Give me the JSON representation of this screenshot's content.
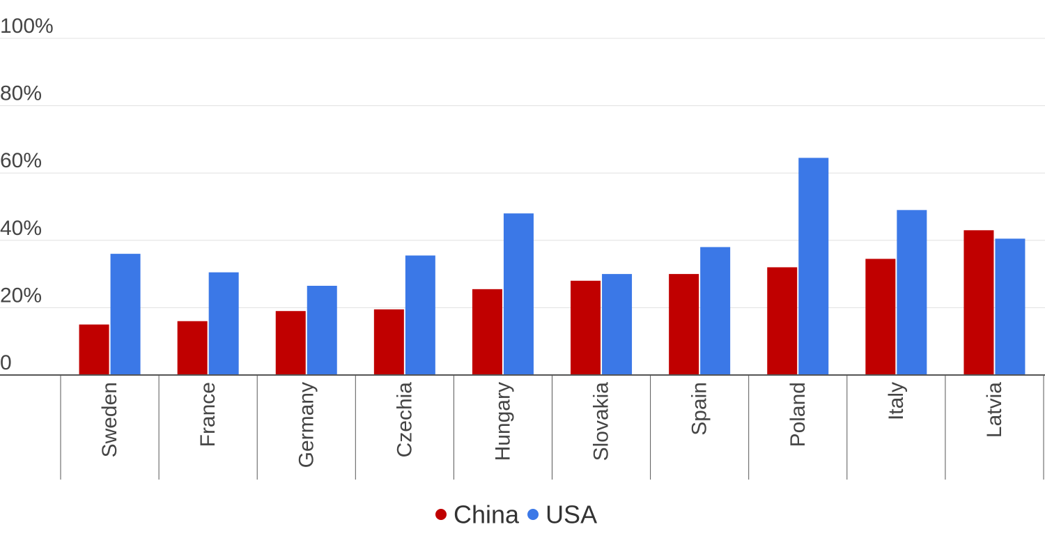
{
  "chart_data": {
    "type": "bar",
    "categories": [
      "Sweden",
      "France",
      "Germany",
      "Czechia",
      "Hungary",
      "Slovakia",
      "Spain",
      "Poland",
      "Italy",
      "Latvia"
    ],
    "series": [
      {
        "name": "China",
        "color": "#c00000",
        "values": [
          15,
          16,
          19,
          19.5,
          25.5,
          28,
          30,
          32,
          34.5,
          43
        ]
      },
      {
        "name": "USA",
        "color": "#3b78e7",
        "values": [
          36,
          30.5,
          26.5,
          35.5,
          48,
          30,
          38,
          64.5,
          49,
          40.5
        ]
      }
    ],
    "yticks": [
      "0",
      "20%",
      "40%",
      "60%",
      "80%",
      "100%"
    ],
    "ylim": [
      0,
      100
    ],
    "grid": true,
    "legend": "bottom-center"
  }
}
